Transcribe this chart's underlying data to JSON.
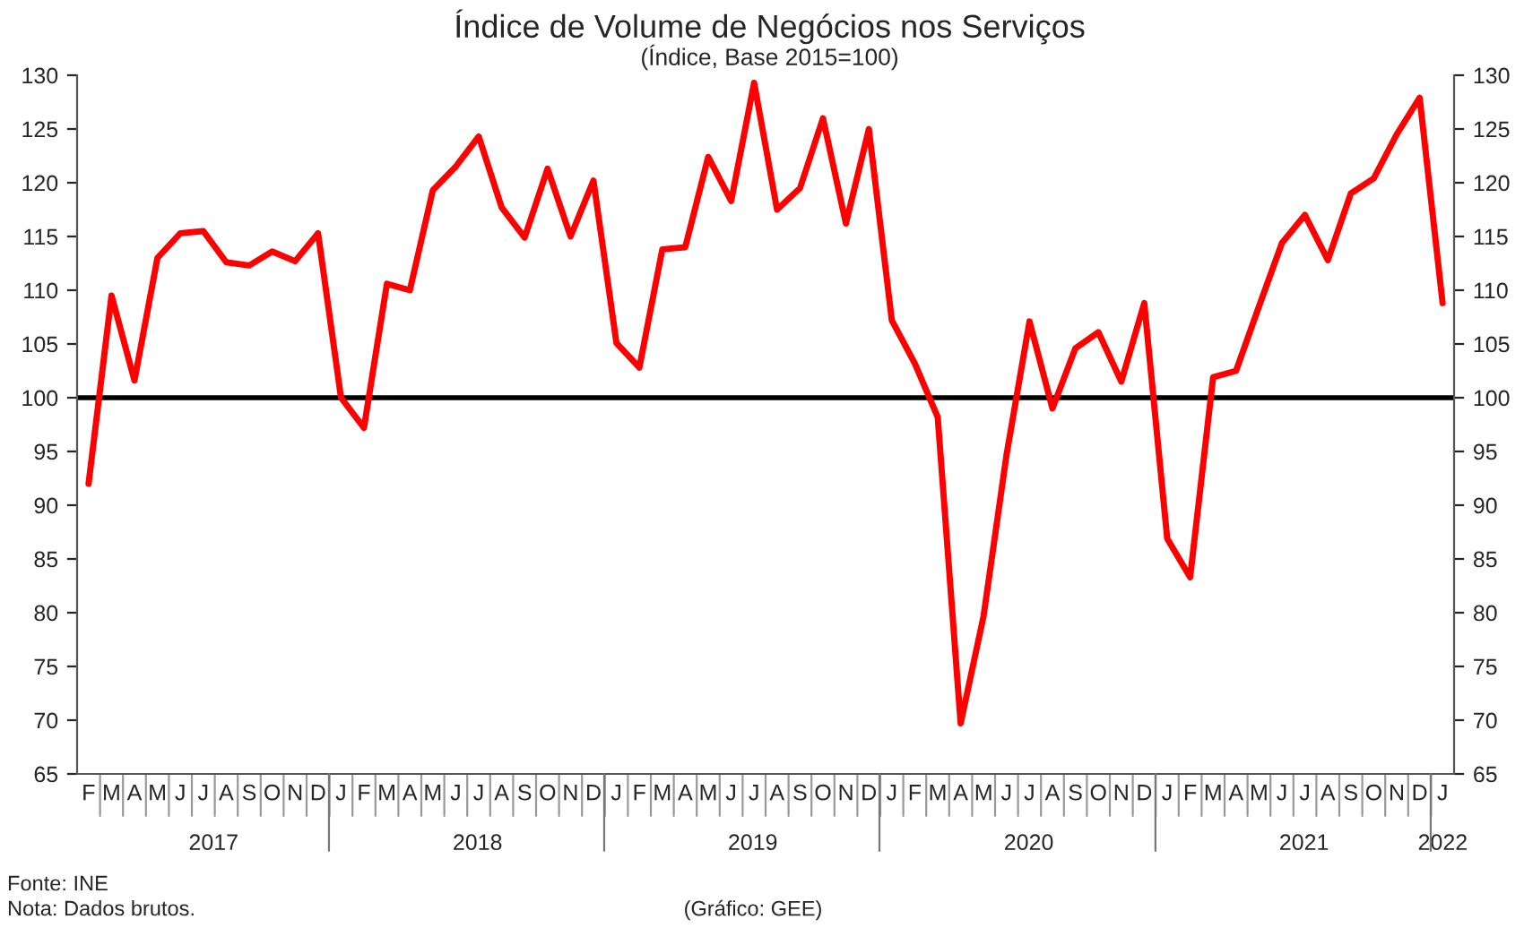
{
  "chart_data": {
    "type": "line",
    "title": "Índice de Volume de Negócios nos Serviços",
    "subtitle": "(Índice, Base 2015=100)",
    "categories": [
      "F",
      "M",
      "A",
      "M",
      "J",
      "J",
      "A",
      "S",
      "O",
      "N",
      "D",
      "J",
      "F",
      "M",
      "A",
      "M",
      "J",
      "J",
      "A",
      "S",
      "O",
      "N",
      "D",
      "J",
      "F",
      "M",
      "A",
      "M",
      "J",
      "J",
      "A",
      "S",
      "O",
      "N",
      "D",
      "J",
      "F",
      "M",
      "A",
      "M",
      "J",
      "J",
      "A",
      "S",
      "O",
      "N",
      "D",
      "J",
      "F",
      "M",
      "A",
      "M",
      "J",
      "J",
      "A",
      "S",
      "O",
      "N",
      "D",
      "J"
    ],
    "series": [
      {
        "color": "#ff0000",
        "values": [
          92,
          109.5,
          101.6,
          113,
          115.3,
          115.5,
          112.6,
          112.3,
          113.6,
          112.7,
          115.3,
          100,
          97.2,
          110.6,
          110,
          119.3,
          121.5,
          124.3,
          117.7,
          114.9,
          121.3,
          115,
          120.2,
          105.1,
          102.8,
          113.8,
          114,
          122.4,
          118.3,
          129.3,
          117.5,
          119.5,
          126,
          116.2,
          125,
          107.2,
          103.2,
          98.2,
          69.7,
          79.7,
          94.7,
          107.1,
          99,
          104.6,
          106.1,
          101.5,
          108.8,
          86.9,
          83.3,
          101.9,
          102.5,
          108.5,
          114.4,
          117,
          112.8,
          119,
          120.4,
          124.5,
          127.9,
          108.8
        ]
      }
    ],
    "x2lim": [
      "2017-01-16",
      "2022-01-16"
    ],
    "x2ticks": [
      {
        "value": "2017-07-16",
        "label": "2017"
      },
      {
        "value": "2018-07-01",
        "label": "2018"
      },
      {
        "value": "2019-07-01",
        "label": "2019"
      },
      {
        "value": "2020-07-01",
        "label": "2020"
      },
      {
        "value": "2021-07-01",
        "label": "2021"
      },
      {
        "value": "2022-01-01",
        "label": "2022"
      }
    ],
    "ylim": [
      65,
      130
    ],
    "yticks": [
      65,
      70,
      75,
      80,
      85,
      90,
      95,
      100,
      105,
      110,
      115,
      120,
      125,
      130
    ],
    "y2lim": [
      65,
      130
    ],
    "y2ticks": [
      65,
      70,
      75,
      80,
      85,
      90,
      95,
      100,
      105,
      110,
      115,
      120,
      125,
      130
    ],
    "ref_lines": [
      {
        "axis": "y",
        "value": 100,
        "color": "#000000"
      }
    ],
    "grid": false,
    "legend": false,
    "marker": "none",
    "line_style": "solid",
    "annotations": [
      "Fonte: INE",
      "Nota: Dados brutos.",
      "(Gráfico: GEE)"
    ]
  }
}
